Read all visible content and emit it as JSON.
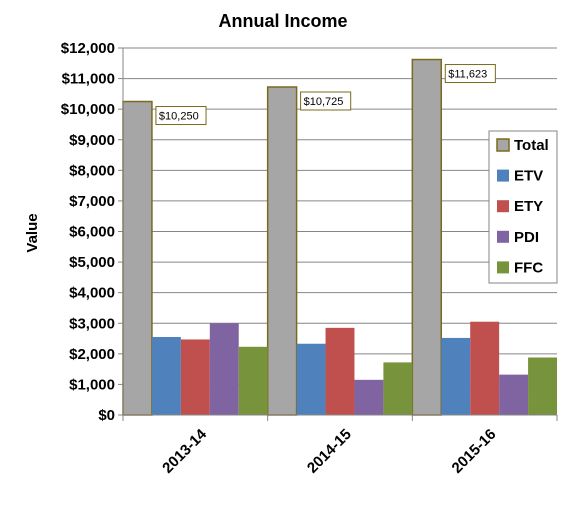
{
  "chart_data": {
    "type": "bar",
    "title": "Annual Income",
    "xlabel": "",
    "ylabel": "Value",
    "ylim": [
      0,
      12000
    ],
    "ytick_step": 1000,
    "ytick_labels": [
      "$0",
      "$1,000",
      "$2,000",
      "$3,000",
      "$4,000",
      "$5,000",
      "$6,000",
      "$7,000",
      "$8,000",
      "$9,000",
      "$10,000",
      "$11,000",
      "$12,000"
    ],
    "grid": true,
    "legend_position": "right",
    "categories": [
      "2013-14",
      "2014-15",
      "2015-16"
    ],
    "series": [
      {
        "name": "Total",
        "color": "#a6a6a6",
        "border": "#7a6a1e",
        "values": [
          10250,
          10725,
          11623
        ],
        "data_labels": [
          "$10,250",
          "$10,725",
          "$11,623"
        ]
      },
      {
        "name": "ETV",
        "color": "#4f81bd",
        "values": [
          2550,
          2330,
          2520
        ]
      },
      {
        "name": "ETY",
        "color": "#c0504d",
        "values": [
          2470,
          2850,
          3050
        ]
      },
      {
        "name": "PDI",
        "color": "#8064a2",
        "values": [
          3000,
          1150,
          1320
        ]
      },
      {
        "name": "FFC",
        "color": "#77933c",
        "values": [
          2230,
          1720,
          1880
        ]
      }
    ]
  }
}
